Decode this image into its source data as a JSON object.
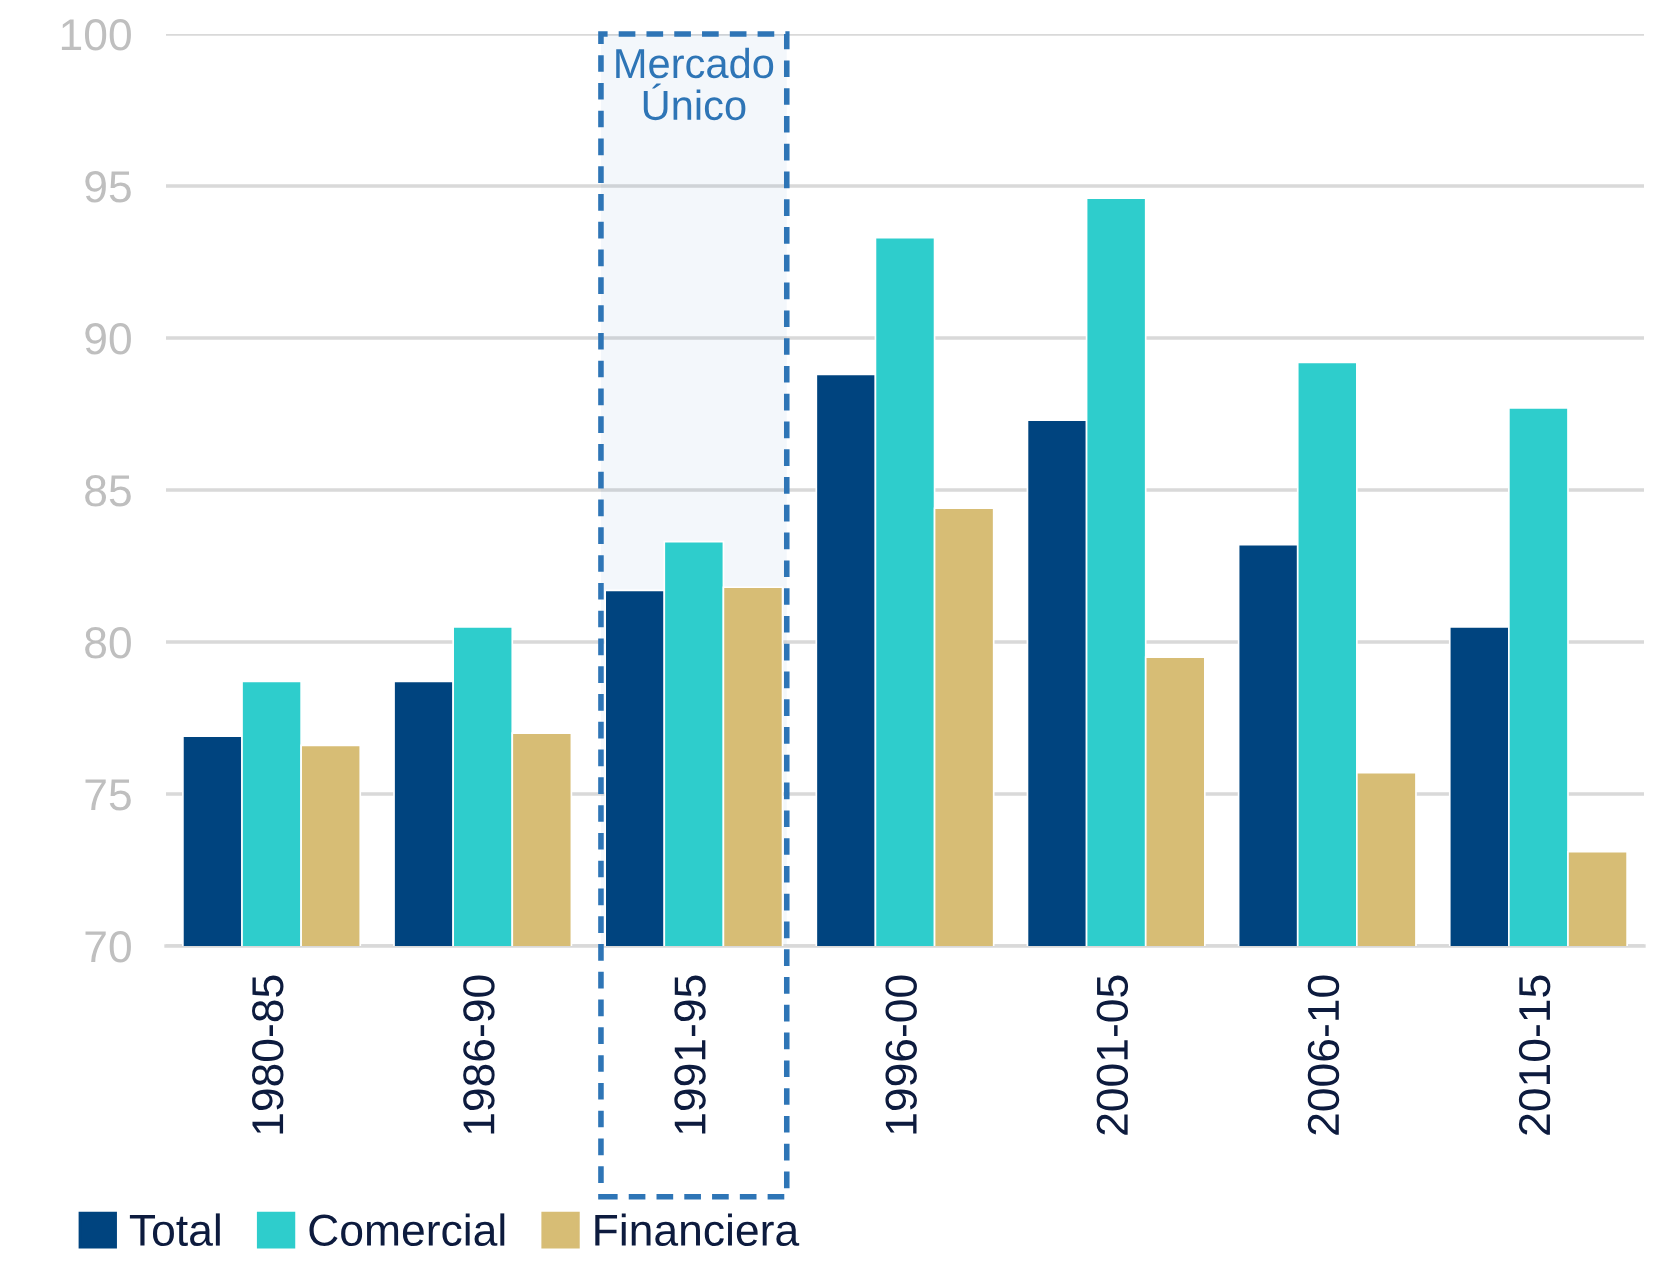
{
  "chart_data": {
    "type": "bar",
    "categories": [
      "1980-85",
      "1986-90",
      "1991-95",
      "1996-00",
      "2001-05",
      "2006-10",
      "2010-15"
    ],
    "series": [
      {
        "name": "Total",
        "color": "#00447f",
        "values": [
          76.9,
          78.7,
          81.7,
          88.8,
          87.3,
          83.2,
          80.5
        ]
      },
      {
        "name": "Comercial",
        "color": "#2ecdcc",
        "values": [
          78.7,
          80.5,
          83.3,
          93.3,
          94.6,
          89.2,
          87.7
        ]
      },
      {
        "name": "Financiera",
        "color": "#d7bd75",
        "values": [
          76.6,
          77.0,
          81.8,
          84.4,
          79.5,
          75.7,
          73.1
        ]
      }
    ],
    "ylim": [
      70,
      100
    ],
    "yticks": [
      70,
      75,
      80,
      85,
      90,
      95,
      100
    ],
    "bands": [
      {
        "axis": "x",
        "from": "1991-95",
        "to": "1991-95",
        "label": "Mercado\nÚnico",
        "color": "#2e75b6"
      }
    ],
    "grid": "y",
    "legend": "bottom"
  }
}
